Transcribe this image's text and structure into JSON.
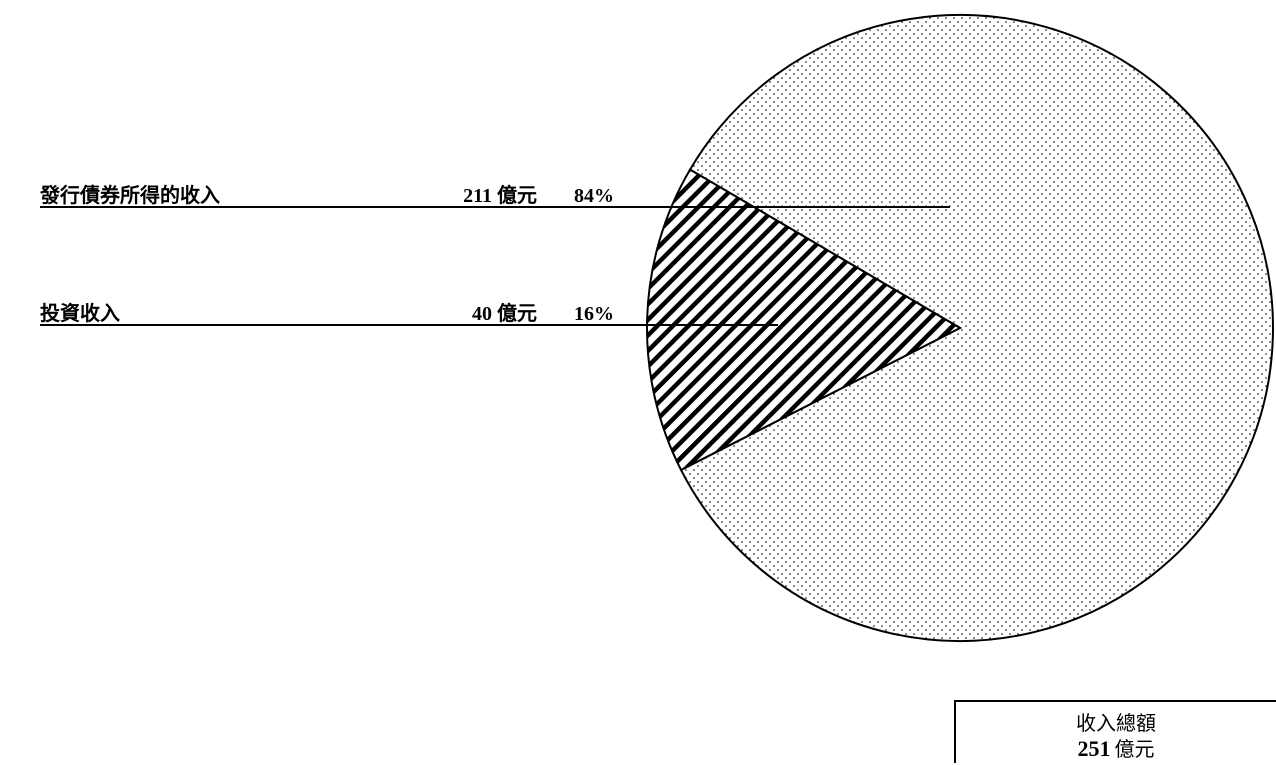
{
  "chart_data": {
    "type": "pie",
    "slices": [
      {
        "label": "發行債券所得的收入",
        "value": 211,
        "unit": "億元",
        "percent": "84%",
        "pattern": "dots"
      },
      {
        "label": "投資收入",
        "value": 40,
        "unit": "億元",
        "percent": "16%",
        "pattern": "diagonal-hatch"
      }
    ],
    "total": {
      "title": "收入總額",
      "value": 251,
      "unit": "億元"
    },
    "legend": "none",
    "colors": {
      "fill": "#ffffff",
      "stroke": "#000000",
      "pattern": "#000000"
    }
  }
}
